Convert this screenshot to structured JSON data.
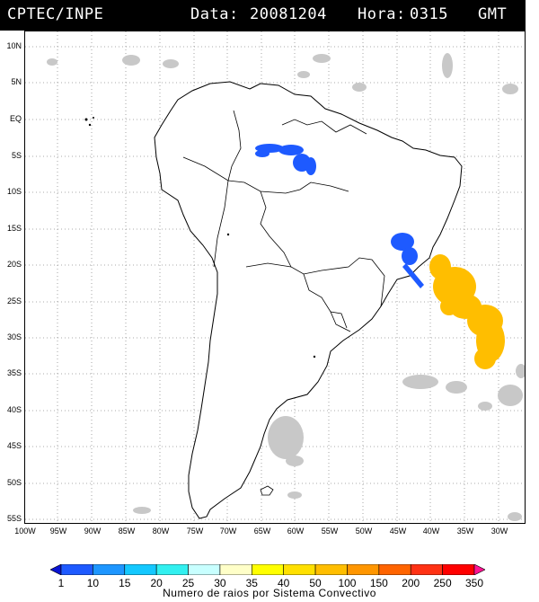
{
  "header": {
    "source": "CPTEC/INPE",
    "date_label": "Data:",
    "date_value": "20081204",
    "time_label": "Hora:",
    "time_value": "0315",
    "time_unit": "GMT"
  },
  "map": {
    "lat_labels": [
      "10N",
      "5N",
      "EQ",
      "5S",
      "10S",
      "15S",
      "20S",
      "25S",
      "30S",
      "35S",
      "40S",
      "45S",
      "50S",
      "55S"
    ],
    "lon_labels": [
      "100W",
      "95W",
      "90W",
      "85W",
      "80W",
      "75W",
      "70W",
      "65W",
      "60W",
      "55W",
      "50W",
      "45W",
      "40W",
      "35W",
      "30W"
    ],
    "colors": {
      "ocean": "#ffffff",
      "coast": "#000000",
      "cloud_gray": "#c8c8c8",
      "grid": "#909090"
    }
  },
  "colorbar": {
    "title": "Numero de raios por Sistema Convectivo",
    "labels": [
      "1",
      "10",
      "15",
      "20",
      "25",
      "30",
      "35",
      "40",
      "50",
      "100",
      "150",
      "200",
      "250",
      "350"
    ],
    "colors": [
      "#0a14d2",
      "#1e5aff",
      "#1e96ff",
      "#14c8ff",
      "#32f0f0",
      "#c8ffff",
      "#ffffc8",
      "#ffff00",
      "#ffe000",
      "#ffbe00",
      "#ff9600",
      "#ff6400",
      "#ff3214",
      "#ff0000",
      "#ff1493"
    ]
  },
  "lightning_systems": [
    {
      "name": "Amazon system",
      "count_class": "10",
      "color": "#1e5aff"
    },
    {
      "name": "Minas Gerais system",
      "count_class": "10",
      "color": "#1e5aff"
    },
    {
      "name": "Atlantic system",
      "count_class": "100",
      "color": "#ffbe00"
    }
  ]
}
